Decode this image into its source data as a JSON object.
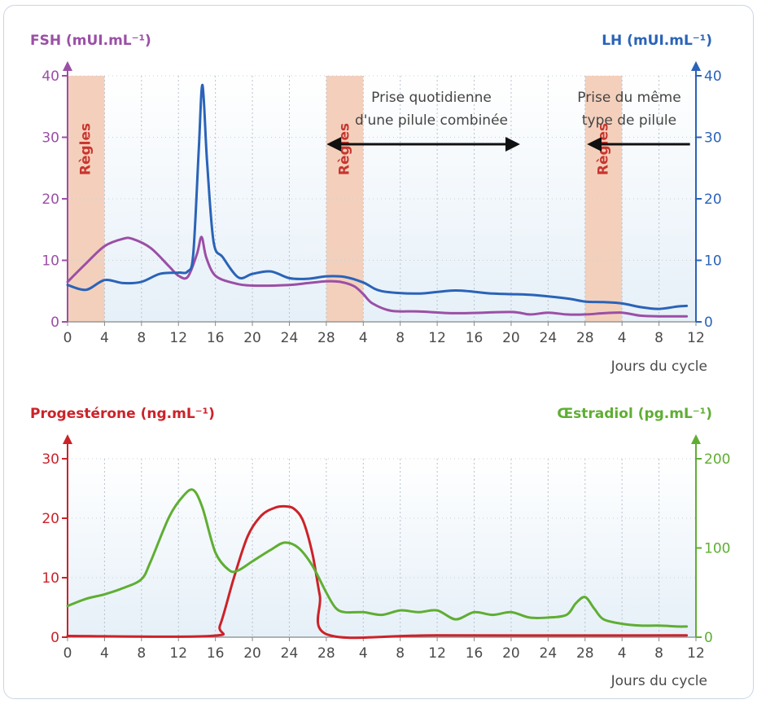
{
  "chart_data": [
    {
      "type": "line",
      "left_axis_label": "FSH (mUI.mL⁻¹)",
      "right_axis_label": "LH (mUI.mL⁻¹)",
      "xlabel": "Jours du cycle",
      "ylim": [
        0,
        40
      ],
      "y2lim": [
        0,
        40
      ],
      "yticks": [
        "0",
        "10",
        "20",
        "30",
        "40"
      ],
      "y2ticks": [
        "0",
        "10",
        "20",
        "30",
        "40"
      ],
      "xticks": [
        "0",
        "4",
        "8",
        "12",
        "16",
        "20",
        "24",
        "28",
        "4",
        "8",
        "12",
        "16",
        "20",
        "24",
        "28",
        "4",
        "8",
        "12"
      ],
      "grid": true,
      "shaded_periods": [
        {
          "label": "Règles",
          "from": 0,
          "to": 4
        },
        {
          "label": "Règles",
          "from": 28,
          "to": 32
        },
        {
          "label": "Règles",
          "from": 56,
          "to": 60
        }
      ],
      "annotations": [
        {
          "lines": [
            "Prise quotidienne",
            "d'une pilule combinée"
          ],
          "arrow_from": 28,
          "arrow_to": 49
        },
        {
          "lines": [
            "Prise du même",
            "type de pilule"
          ],
          "arrow_from": 67,
          "arrow_to": 56
        }
      ],
      "series": [
        {
          "name": "FSH",
          "axis": "left",
          "color": "#9b4fa6",
          "x": [
            0,
            2,
            4,
            6,
            7,
            9,
            11,
            12,
            13,
            14,
            14.5,
            15,
            16,
            18,
            20,
            24,
            26,
            28,
            29.5,
            31,
            32,
            33,
            35,
            38,
            42,
            48,
            50,
            52,
            54,
            56,
            58,
            60,
            62,
            64,
            66,
            67
          ],
          "y": [
            6.5,
            9.5,
            12.3,
            13.5,
            13.5,
            12,
            9,
            7.5,
            7.3,
            11,
            13.8,
            10.5,
            7.5,
            6.3,
            5.9,
            6.0,
            6.3,
            6.6,
            6.5,
            5.8,
            4.5,
            3.0,
            1.8,
            1.7,
            1.4,
            1.6,
            1.2,
            1.5,
            1.2,
            1.2,
            1.4,
            1.5,
            1.0,
            0.9,
            0.9,
            0.9
          ]
        },
        {
          "name": "LH",
          "axis": "right",
          "color": "#2a63b8",
          "x": [
            0,
            2,
            4,
            6,
            8,
            10,
            12,
            13,
            13.6,
            14.2,
            14.6,
            15.1,
            15.8,
            16.8,
            18.5,
            20,
            22,
            24,
            26,
            28,
            30,
            32,
            34,
            38,
            42,
            46,
            50,
            54,
            56,
            58,
            60,
            62,
            64,
            66,
            67
          ],
          "y": [
            6,
            5.2,
            6.8,
            6.3,
            6.5,
            7.8,
            8.0,
            8.2,
            11,
            28,
            38.5,
            26,
            13,
            10.5,
            7.2,
            7.8,
            8.2,
            7.1,
            7.0,
            7.4,
            7.3,
            6.4,
            5,
            4.6,
            5.1,
            4.6,
            4.4,
            3.8,
            3.3,
            3.2,
            3.0,
            2.4,
            2.1,
            2.5,
            2.6
          ]
        }
      ]
    },
    {
      "type": "line",
      "left_axis_label": "Progestérone (ng.mL⁻¹)",
      "right_axis_label": "Œstradiol (pg.mL⁻¹)",
      "xlabel": "Jours du cycle",
      "ylim": [
        0,
        30
      ],
      "y2lim": [
        0,
        200
      ],
      "yticks": [
        "0",
        "10",
        "20",
        "30"
      ],
      "y2ticks": [
        "0",
        "100",
        "200"
      ],
      "xticks": [
        "0",
        "4",
        "8",
        "12",
        "16",
        "20",
        "24",
        "28",
        "4",
        "8",
        "12",
        "16",
        "20",
        "24",
        "28",
        "4",
        "8",
        "12"
      ],
      "grid": true,
      "series": [
        {
          "name": "Progestérone",
          "axis": "left",
          "color": "#cc2229",
          "x": [
            0,
            15.5,
            16.5,
            18,
            19.5,
            21,
            22.5,
            23.5,
            24.5,
            25.5,
            26.5,
            27.3,
            28.2,
            40,
            67
          ],
          "y": [
            0.2,
            0.2,
            2,
            10,
            17,
            20.5,
            21.8,
            22.0,
            21.6,
            19.5,
            14,
            7,
            0.4,
            0.3,
            0.3
          ]
        },
        {
          "name": "Œstradiol",
          "axis": "right",
          "color": "#5fae32",
          "x": [
            0,
            2,
            4,
            6,
            8,
            9,
            11,
            12.5,
            13.6,
            14.6,
            16,
            17.5,
            18.5,
            20,
            22,
            23.5,
            25,
            26.5,
            28,
            29,
            30,
            32,
            34,
            36,
            38,
            40,
            42,
            44,
            46,
            48,
            50,
            52,
            54,
            55,
            56,
            57,
            58,
            60,
            62,
            64,
            66,
            67
          ],
          "y": [
            35,
            43,
            48,
            55,
            65,
            85,
            135,
            158,
            165,
            145,
            95,
            75,
            75,
            85,
            98,
            106,
            100,
            80,
            50,
            33,
            28,
            28,
            25,
            30,
            28,
            30,
            20,
            28,
            25,
            28,
            22,
            22,
            25,
            38,
            45,
            32,
            20,
            15,
            13,
            13,
            12,
            12
          ]
        }
      ]
    }
  ]
}
